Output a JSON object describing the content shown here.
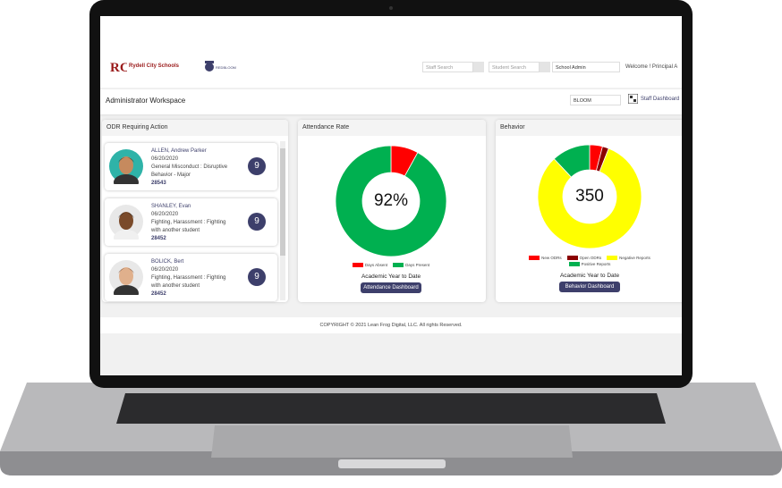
{
  "header": {
    "logo_text": "Rydell City Schools",
    "brand_text": "REDBLOOM",
    "staff_search_placeholder": "Staff Search",
    "student_search_placeholder": "Student Search",
    "role_select": "School Admin",
    "welcome": "Welcome ! Principal A"
  },
  "workspace": {
    "title": "Administrator Workspace",
    "school_select": "BLOOM",
    "staff_dashboard_link": "Staff Dashboard"
  },
  "odr_panel": {
    "title": "ODR Requiring Action",
    "items": [
      {
        "name": "ALLEN, Andrew Parker",
        "date": "06/20/2020",
        "description": "General Misconduct : Disruptive Behavior - Major",
        "id": "28543",
        "count": "9"
      },
      {
        "name": "SHANLEY, Evan",
        "date": "06/20/2020",
        "description": "Fighting, Harassment : Fighting with another student",
        "id": "28452",
        "count": "9"
      },
      {
        "name": "BOLICK, Bert",
        "date": "06/20/2020",
        "description": "Fighting, Harassment : Fighting with another student",
        "id": "28452",
        "count": "9"
      }
    ]
  },
  "attendance_panel": {
    "title": "Attendance Rate",
    "chart": {
      "type": "donut",
      "center_label": "92%",
      "categories": [
        "Days Absent",
        "Days Present"
      ],
      "values": [
        8,
        92
      ],
      "colors": [
        "#ff0000",
        "#00b050"
      ]
    },
    "period": "Academic Year to Date",
    "button": "Attendance Dashboard"
  },
  "behavior_panel": {
    "title": "Behavior",
    "chart": {
      "type": "donut",
      "center_label": "350",
      "categories": [
        "New ODRs",
        "Open ODRs",
        "Negative Reports",
        "Positive Reports"
      ],
      "values": [
        4,
        2,
        82,
        12
      ],
      "colors": [
        "#ff0000",
        "#8b0000",
        "#ffff00",
        "#00b050"
      ]
    },
    "period": "Academic Year to Date",
    "button": "Behavior Dashboard"
  },
  "footer": {
    "copyright": "COPYRIGHT © 2021 Lean Frog Digital, LLC. All rights Reserved."
  }
}
